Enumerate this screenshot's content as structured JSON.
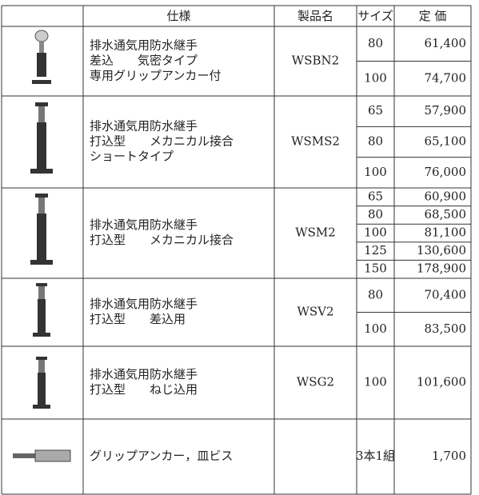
{
  "table": {
    "header": [
      "仕様",
      "製品名",
      "サイズ",
      "定 価"
    ],
    "rows": [
      {
        "spec": [
          "排水通気用防水継手",
          "差込　　気密タイプ",
          "専用グリップアンカー付"
        ],
        "name": "WSBN2",
        "sizes": [
          "80",
          "100"
        ],
        "prices": [
          "61,400",
          "74,700"
        ]
      },
      {
        "spec": [
          "排水通気用防水継手",
          "打込型　　メカニカル接合",
          "ショートタイプ"
        ],
        "name": "WSMS2",
        "sizes": [
          "65",
          "80",
          "100"
        ],
        "prices": [
          "57,900",
          "65,100",
          "76,000"
        ]
      },
      {
        "spec": [
          "排水通気用防水継手",
          "打込型　　メカニカル接合"
        ],
        "name": "WSM2",
        "sizes": [
          "65",
          "80",
          "100",
          "125",
          "150"
        ],
        "prices": [
          "60,900",
          "68,500",
          "81,100",
          "130,600",
          "178,900"
        ]
      },
      {
        "spec": [
          "排水通気用防水継手",
          "打込型　　差込用"
        ],
        "name": "WSV2",
        "sizes": [
          "80",
          "100"
        ],
        "prices": [
          "70,400",
          "83,500"
        ]
      },
      {
        "spec": [
          "排水通気用防水継手",
          "打込型　　ねじ込用"
        ],
        "name": "WSG2",
        "sizes": [
          "100"
        ],
        "prices": [
          "101,600"
        ]
      },
      {
        "spec": [
          "グリップアンカー，皿ビス"
        ],
        "sizes": [
          "3本1組"
        ],
        "prices": [
          "1,700"
        ]
      }
    ]
  }
}
